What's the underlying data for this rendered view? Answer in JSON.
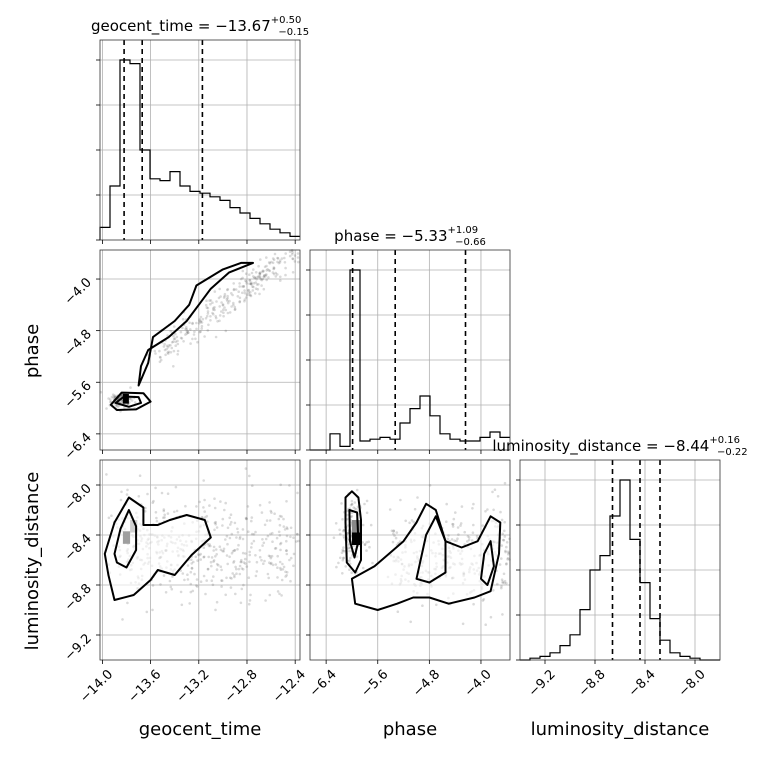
{
  "chart_data": {
    "type": "corner",
    "parameters": [
      "geocent_time",
      "phase",
      "luminosity_distance"
    ],
    "axis_labels": {
      "x": [
        "geocent_time",
        "phase",
        "luminosity_distance"
      ],
      "y": [
        "",
        "phase",
        "luminosity_distance"
      ]
    },
    "titles": [
      {
        "param": "geocent_time",
        "prefix": "geocent_time = ",
        "median": "−13.67",
        "plus": "+0.50",
        "minus": "−0.15"
      },
      {
        "param": "phase",
        "prefix": "phase = ",
        "median": "−5.33",
        "plus": "+1.09",
        "minus": "−0.66"
      },
      {
        "param": "luminosity_distance",
        "prefix": "luminosity_distance = ",
        "median": "−8.44",
        "plus": "+0.16",
        "minus": "−0.22"
      }
    ],
    "ranges": {
      "geocent_time": [
        -14.02,
        -12.36
      ],
      "phase": [
        -6.65,
        -3.55
      ],
      "luminosity_distance": [
        -9.4,
        -7.8
      ]
    },
    "ticks": {
      "geocent_time": [
        -14.0,
        -13.6,
        -13.2,
        -12.8,
        -12.4
      ],
      "phase": [
        -6.4,
        -5.6,
        -4.8,
        -4.0
      ],
      "luminosity_distance": [
        -9.2,
        -8.8,
        -8.4,
        -8.0
      ]
    },
    "tick_labels": {
      "geocent_time": [
        "−14.0",
        "−13.6",
        "−13.2",
        "−12.8",
        "−12.4"
      ],
      "phase": [
        "−6.4",
        "−5.6",
        "−4.8",
        "−4.0"
      ],
      "luminosity_distance": [
        "−9.2",
        "−8.8",
        "−8.4",
        "−8.0"
      ]
    },
    "quantiles": {
      "geocent_time": [
        -13.82,
        -13.67,
        -13.17
      ],
      "phase": [
        -5.99,
        -5.33,
        -4.24
      ],
      "luminosity_distance": [
        -8.66,
        -8.44,
        -8.28
      ]
    },
    "histograms": {
      "geocent_time": {
        "edges_range": [
          -14.02,
          -12.36
        ],
        "counts": [
          0.07,
          0.3,
          1.0,
          0.98,
          0.5,
          0.34,
          0.33,
          0.38,
          0.3,
          0.27,
          0.26,
          0.24,
          0.22,
          0.18,
          0.15,
          0.12,
          0.09,
          0.06,
          0.04,
          0.02
        ]
      },
      "phase": {
        "edges_range": [
          -6.65,
          -3.55
        ],
        "counts": [
          0.0,
          0.0,
          0.09,
          0.02,
          1.0,
          0.05,
          0.06,
          0.07,
          0.06,
          0.15,
          0.23,
          0.3,
          0.19,
          0.09,
          0.06,
          0.05,
          0.05,
          0.07,
          0.1,
          0.07
        ]
      },
      "luminosity_distance": {
        "edges_range": [
          -9.4,
          -7.8
        ],
        "counts": [
          0.0,
          0.01,
          0.02,
          0.04,
          0.08,
          0.14,
          0.28,
          0.5,
          0.58,
          0.8,
          1.0,
          0.67,
          0.43,
          0.23,
          0.11,
          0.04,
          0.02,
          0.01,
          0.0,
          0.0
        ]
      }
    },
    "grid": true,
    "colors": {
      "line": "#000000",
      "points": "#555555",
      "grid": "#b0b0b0"
    }
  }
}
